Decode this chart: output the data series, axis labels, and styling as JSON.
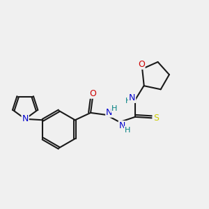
{
  "background_color": "#f0f0f0",
  "bond_color": "#1a1a1a",
  "atom_colors": {
    "N": "#0000cc",
    "O": "#cc0000",
    "S": "#cccc00",
    "H": "#008080",
    "C": "#1a1a1a"
  },
  "figsize": [
    3.0,
    3.0
  ],
  "dpi": 100
}
